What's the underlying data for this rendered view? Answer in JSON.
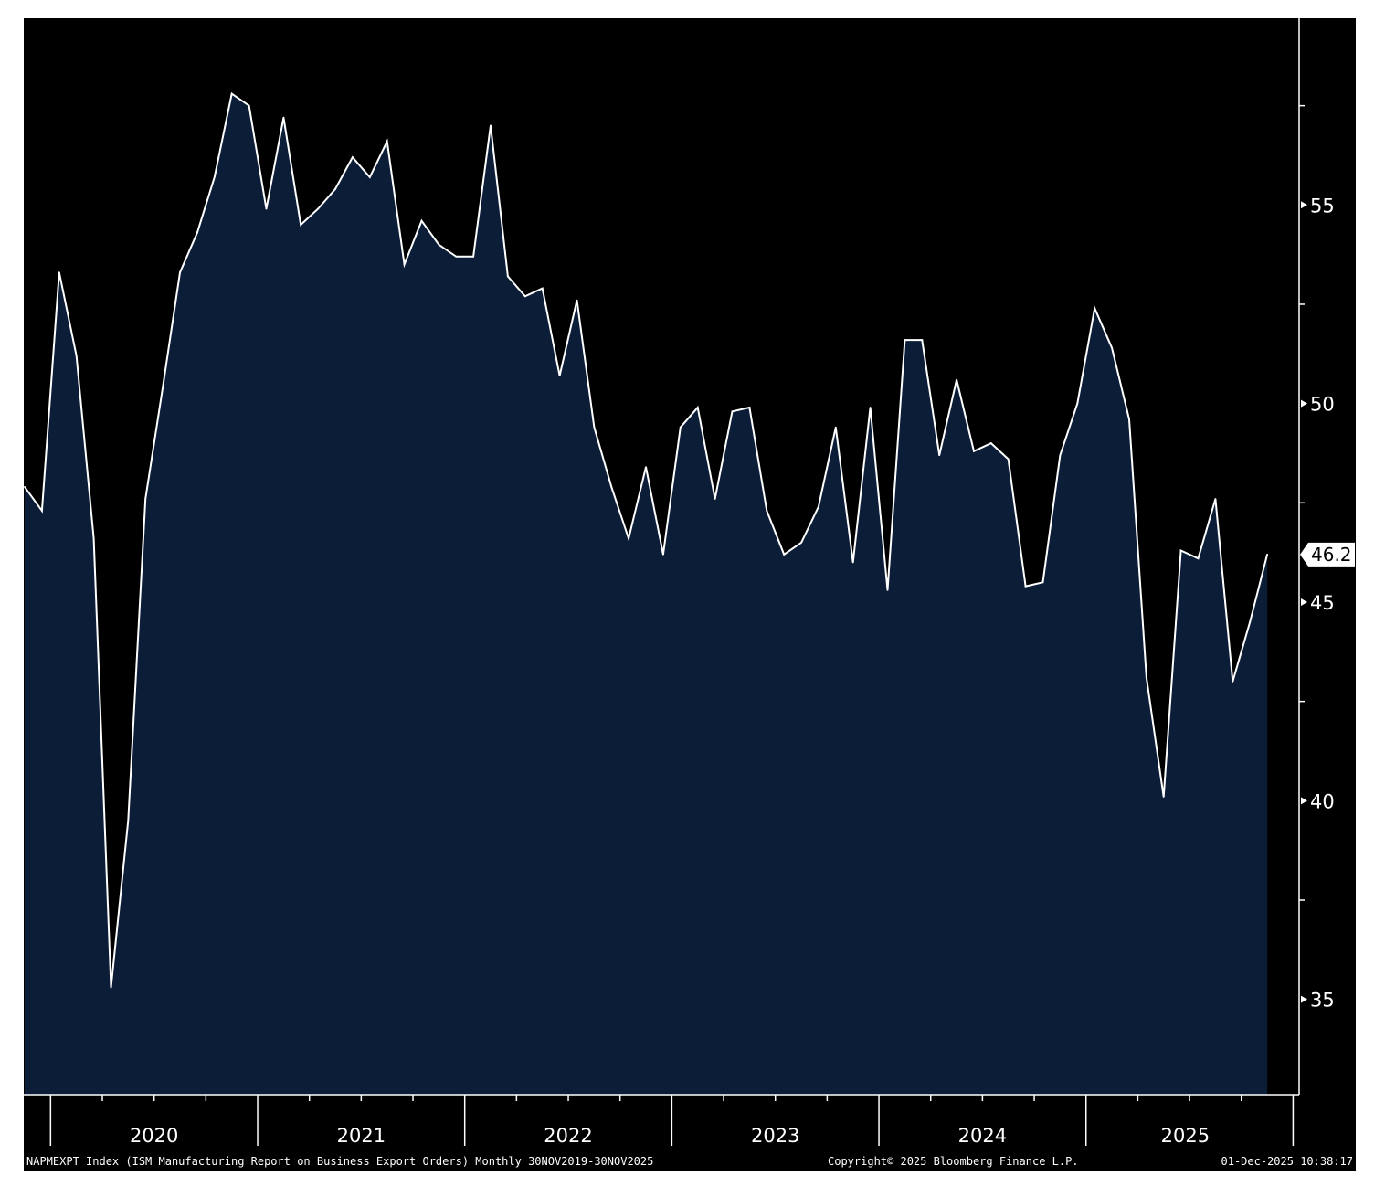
{
  "chart_data": {
    "type": "area",
    "x": [
      "2019-11",
      "2019-12",
      "2020-01",
      "2020-02",
      "2020-03",
      "2020-04",
      "2020-05",
      "2020-06",
      "2020-07",
      "2020-08",
      "2020-09",
      "2020-10",
      "2020-11",
      "2020-12",
      "2021-01",
      "2021-02",
      "2021-03",
      "2021-04",
      "2021-05",
      "2021-06",
      "2021-07",
      "2021-08",
      "2021-09",
      "2021-10",
      "2021-11",
      "2021-12",
      "2022-01",
      "2022-02",
      "2022-03",
      "2022-04",
      "2022-05",
      "2022-06",
      "2022-07",
      "2022-08",
      "2022-09",
      "2022-10",
      "2022-11",
      "2022-12",
      "2023-01",
      "2023-02",
      "2023-03",
      "2023-04",
      "2023-05",
      "2023-06",
      "2023-07",
      "2023-08",
      "2023-09",
      "2023-10",
      "2023-11",
      "2023-12",
      "2024-01",
      "2024-02",
      "2024-03",
      "2024-04",
      "2024-05",
      "2024-06",
      "2024-07",
      "2024-08",
      "2024-09",
      "2024-10",
      "2024-11",
      "2024-12",
      "2025-01",
      "2025-02",
      "2025-03",
      "2025-04",
      "2025-05",
      "2025-06",
      "2025-07",
      "2025-08",
      "2025-09",
      "2025-10",
      "2025-11"
    ],
    "values": [
      47.9,
      47.3,
      53.3,
      51.2,
      46.6,
      35.3,
      39.5,
      47.6,
      50.4,
      53.3,
      54.3,
      55.7,
      57.8,
      57.5,
      54.9,
      57.2,
      54.5,
      54.9,
      55.4,
      56.2,
      55.7,
      56.6,
      53.5,
      54.6,
      54.0,
      53.7,
      53.7,
      57.0,
      53.2,
      52.7,
      52.9,
      50.7,
      52.6,
      49.4,
      47.9,
      46.6,
      48.4,
      46.2,
      49.4,
      49.9,
      47.6,
      49.8,
      49.9,
      47.3,
      46.2,
      46.5,
      47.4,
      49.4,
      46.0,
      49.9,
      45.3,
      51.6,
      51.6,
      48.7,
      50.6,
      48.8,
      49.0,
      48.6,
      45.4,
      45.5,
      48.7,
      50.0,
      52.4,
      51.4,
      49.6,
      43.1,
      40.1,
      46.3,
      46.1,
      47.6,
      43.0,
      44.5,
      46.2
    ],
    "last_value_label": "46.2",
    "yticks": [
      "35",
      "40",
      "45",
      "50",
      "55"
    ],
    "ylim": [
      32.6,
      59.7
    ],
    "year_labels": [
      "2020",
      "2021",
      "2022",
      "2023",
      "2024",
      "2025"
    ],
    "colors": {
      "background": "#000000",
      "fill": "#0c1d38",
      "line": "#ffffff",
      "label_box": "#ffffff"
    },
    "footer": {
      "left": "NAPMEXPT Index (ISM Manufacturing Report on Business Export Orders) Monthly 30NOV2019-30NOV2025",
      "center": "Copyright© 2025 Bloomberg Finance L.P.",
      "right": "01-Dec-2025 10:38:17"
    }
  }
}
